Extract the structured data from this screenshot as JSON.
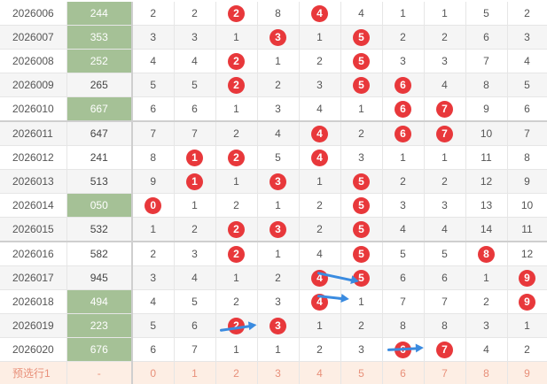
{
  "rows": [
    {
      "issue": "2026006",
      "number": "244",
      "hl": true,
      "cells": [
        {
          "v": "2",
          "hot": false
        },
        {
          "v": "2",
          "hot": false
        },
        {
          "v": "2",
          "hot": true
        },
        {
          "v": "8",
          "hot": false
        },
        {
          "v": "4",
          "hot": true
        },
        {
          "v": "4",
          "hot": false
        },
        {
          "v": "1",
          "hot": false
        },
        {
          "v": "1",
          "hot": false
        },
        {
          "v": "5",
          "hot": false
        },
        {
          "v": "2",
          "hot": false
        }
      ]
    },
    {
      "issue": "2026007",
      "number": "353",
      "hl": true,
      "cells": [
        {
          "v": "3",
          "hot": false
        },
        {
          "v": "3",
          "hot": false
        },
        {
          "v": "1",
          "hot": false
        },
        {
          "v": "3",
          "hot": true
        },
        {
          "v": "1",
          "hot": false
        },
        {
          "v": "5",
          "hot": true
        },
        {
          "v": "2",
          "hot": false
        },
        {
          "v": "2",
          "hot": false
        },
        {
          "v": "6",
          "hot": false
        },
        {
          "v": "3",
          "hot": false
        }
      ]
    },
    {
      "issue": "2026008",
      "number": "252",
      "hl": true,
      "cells": [
        {
          "v": "4",
          "hot": false
        },
        {
          "v": "4",
          "hot": false
        },
        {
          "v": "2",
          "hot": true
        },
        {
          "v": "1",
          "hot": false
        },
        {
          "v": "2",
          "hot": false
        },
        {
          "v": "5",
          "hot": true
        },
        {
          "v": "3",
          "hot": false
        },
        {
          "v": "3",
          "hot": false
        },
        {
          "v": "7",
          "hot": false
        },
        {
          "v": "4",
          "hot": false
        }
      ]
    },
    {
      "issue": "2026009",
      "number": "265",
      "hl": false,
      "cells": [
        {
          "v": "5",
          "hot": false
        },
        {
          "v": "5",
          "hot": false
        },
        {
          "v": "2",
          "hot": true
        },
        {
          "v": "2",
          "hot": false
        },
        {
          "v": "3",
          "hot": false
        },
        {
          "v": "5",
          "hot": true
        },
        {
          "v": "6",
          "hot": true
        },
        {
          "v": "4",
          "hot": false
        },
        {
          "v": "8",
          "hot": false
        },
        {
          "v": "5",
          "hot": false
        }
      ]
    },
    {
      "issue": "2026010",
      "number": "667",
      "hl": true,
      "cells": [
        {
          "v": "6",
          "hot": false
        },
        {
          "v": "6",
          "hot": false
        },
        {
          "v": "1",
          "hot": false
        },
        {
          "v": "3",
          "hot": false
        },
        {
          "v": "4",
          "hot": false
        },
        {
          "v": "1",
          "hot": false
        },
        {
          "v": "6",
          "hot": true
        },
        {
          "v": "7",
          "hot": true
        },
        {
          "v": "9",
          "hot": false
        },
        {
          "v": "6",
          "hot": false
        }
      ]
    },
    {
      "issue": "2026011",
      "number": "647",
      "hl": false,
      "cells": [
        {
          "v": "7",
          "hot": false
        },
        {
          "v": "7",
          "hot": false
        },
        {
          "v": "2",
          "hot": false
        },
        {
          "v": "4",
          "hot": false
        },
        {
          "v": "4",
          "hot": true
        },
        {
          "v": "2",
          "hot": false
        },
        {
          "v": "6",
          "hot": true
        },
        {
          "v": "7",
          "hot": true
        },
        {
          "v": "10",
          "hot": false
        },
        {
          "v": "7",
          "hot": false
        }
      ]
    },
    {
      "issue": "2026012",
      "number": "241",
      "hl": false,
      "cells": [
        {
          "v": "8",
          "hot": false
        },
        {
          "v": "1",
          "hot": true
        },
        {
          "v": "2",
          "hot": true
        },
        {
          "v": "5",
          "hot": false
        },
        {
          "v": "4",
          "hot": true
        },
        {
          "v": "3",
          "hot": false
        },
        {
          "v": "1",
          "hot": false
        },
        {
          "v": "1",
          "hot": false
        },
        {
          "v": "11",
          "hot": false
        },
        {
          "v": "8",
          "hot": false
        }
      ]
    },
    {
      "issue": "2026013",
      "number": "513",
      "hl": false,
      "cells": [
        {
          "v": "9",
          "hot": false
        },
        {
          "v": "1",
          "hot": true
        },
        {
          "v": "1",
          "hot": false
        },
        {
          "v": "3",
          "hot": true
        },
        {
          "v": "1",
          "hot": false
        },
        {
          "v": "5",
          "hot": true
        },
        {
          "v": "2",
          "hot": false
        },
        {
          "v": "2",
          "hot": false
        },
        {
          "v": "12",
          "hot": false
        },
        {
          "v": "9",
          "hot": false
        }
      ]
    },
    {
      "issue": "2026014",
      "number": "050",
      "hl": true,
      "cells": [
        {
          "v": "0",
          "hot": true
        },
        {
          "v": "1",
          "hot": false
        },
        {
          "v": "2",
          "hot": false
        },
        {
          "v": "1",
          "hot": false
        },
        {
          "v": "2",
          "hot": false
        },
        {
          "v": "5",
          "hot": true
        },
        {
          "v": "3",
          "hot": false
        },
        {
          "v": "3",
          "hot": false
        },
        {
          "v": "13",
          "hot": false
        },
        {
          "v": "10",
          "hot": false
        }
      ]
    },
    {
      "issue": "2026015",
      "number": "532",
      "hl": false,
      "cells": [
        {
          "v": "1",
          "hot": false
        },
        {
          "v": "2",
          "hot": false
        },
        {
          "v": "2",
          "hot": true
        },
        {
          "v": "3",
          "hot": true
        },
        {
          "v": "2",
          "hot": false
        },
        {
          "v": "5",
          "hot": true
        },
        {
          "v": "4",
          "hot": false
        },
        {
          "v": "4",
          "hot": false
        },
        {
          "v": "14",
          "hot": false
        },
        {
          "v": "11",
          "hot": false
        }
      ]
    },
    {
      "issue": "2026016",
      "number": "582",
      "hl": false,
      "cells": [
        {
          "v": "2",
          "hot": false
        },
        {
          "v": "3",
          "hot": false
        },
        {
          "v": "2",
          "hot": true
        },
        {
          "v": "1",
          "hot": false
        },
        {
          "v": "4",
          "hot": false
        },
        {
          "v": "5",
          "hot": true
        },
        {
          "v": "5",
          "hot": false
        },
        {
          "v": "5",
          "hot": false
        },
        {
          "v": "8",
          "hot": true
        },
        {
          "v": "12",
          "hot": false
        }
      ]
    },
    {
      "issue": "2026017",
      "number": "945",
      "hl": false,
      "cells": [
        {
          "v": "3",
          "hot": false
        },
        {
          "v": "4",
          "hot": false
        },
        {
          "v": "1",
          "hot": false
        },
        {
          "v": "2",
          "hot": false
        },
        {
          "v": "4",
          "hot": true
        },
        {
          "v": "5",
          "hot": true
        },
        {
          "v": "6",
          "hot": false
        },
        {
          "v": "6",
          "hot": false
        },
        {
          "v": "1",
          "hot": false
        },
        {
          "v": "9",
          "hot": true
        }
      ]
    },
    {
      "issue": "2026018",
      "number": "494",
      "hl": true,
      "cells": [
        {
          "v": "4",
          "hot": false
        },
        {
          "v": "5",
          "hot": false
        },
        {
          "v": "2",
          "hot": false
        },
        {
          "v": "3",
          "hot": false
        },
        {
          "v": "4",
          "hot": true
        },
        {
          "v": "1",
          "hot": false
        },
        {
          "v": "7",
          "hot": false
        },
        {
          "v": "7",
          "hot": false
        },
        {
          "v": "2",
          "hot": false
        },
        {
          "v": "9",
          "hot": true
        }
      ]
    },
    {
      "issue": "2026019",
      "number": "223",
      "hl": true,
      "cells": [
        {
          "v": "5",
          "hot": false
        },
        {
          "v": "6",
          "hot": false
        },
        {
          "v": "2",
          "hot": true
        },
        {
          "v": "3",
          "hot": true
        },
        {
          "v": "1",
          "hot": false
        },
        {
          "v": "2",
          "hot": false
        },
        {
          "v": "8",
          "hot": false
        },
        {
          "v": "8",
          "hot": false
        },
        {
          "v": "3",
          "hot": false
        },
        {
          "v": "1",
          "hot": false
        }
      ]
    },
    {
      "issue": "2026020",
      "number": "676",
      "hl": true,
      "cells": [
        {
          "v": "6",
          "hot": false
        },
        {
          "v": "7",
          "hot": false
        },
        {
          "v": "1",
          "hot": false
        },
        {
          "v": "1",
          "hot": false
        },
        {
          "v": "2",
          "hot": false
        },
        {
          "v": "3",
          "hot": false
        },
        {
          "v": "6",
          "hot": true
        },
        {
          "v": "7",
          "hot": true
        },
        {
          "v": "4",
          "hot": false
        },
        {
          "v": "2",
          "hot": false
        }
      ]
    }
  ],
  "footer": {
    "label": "预选行1",
    "number": "-",
    "cells": [
      "0",
      "1",
      "2",
      "3",
      "4",
      "5",
      "6",
      "7",
      "8",
      "9"
    ]
  },
  "colors": {
    "ball": "#e8383b",
    "highlight": "#a5c196",
    "arrow": "#3a8be0",
    "footer_bg": "#fdeee4",
    "footer_text": "#e8907a"
  }
}
